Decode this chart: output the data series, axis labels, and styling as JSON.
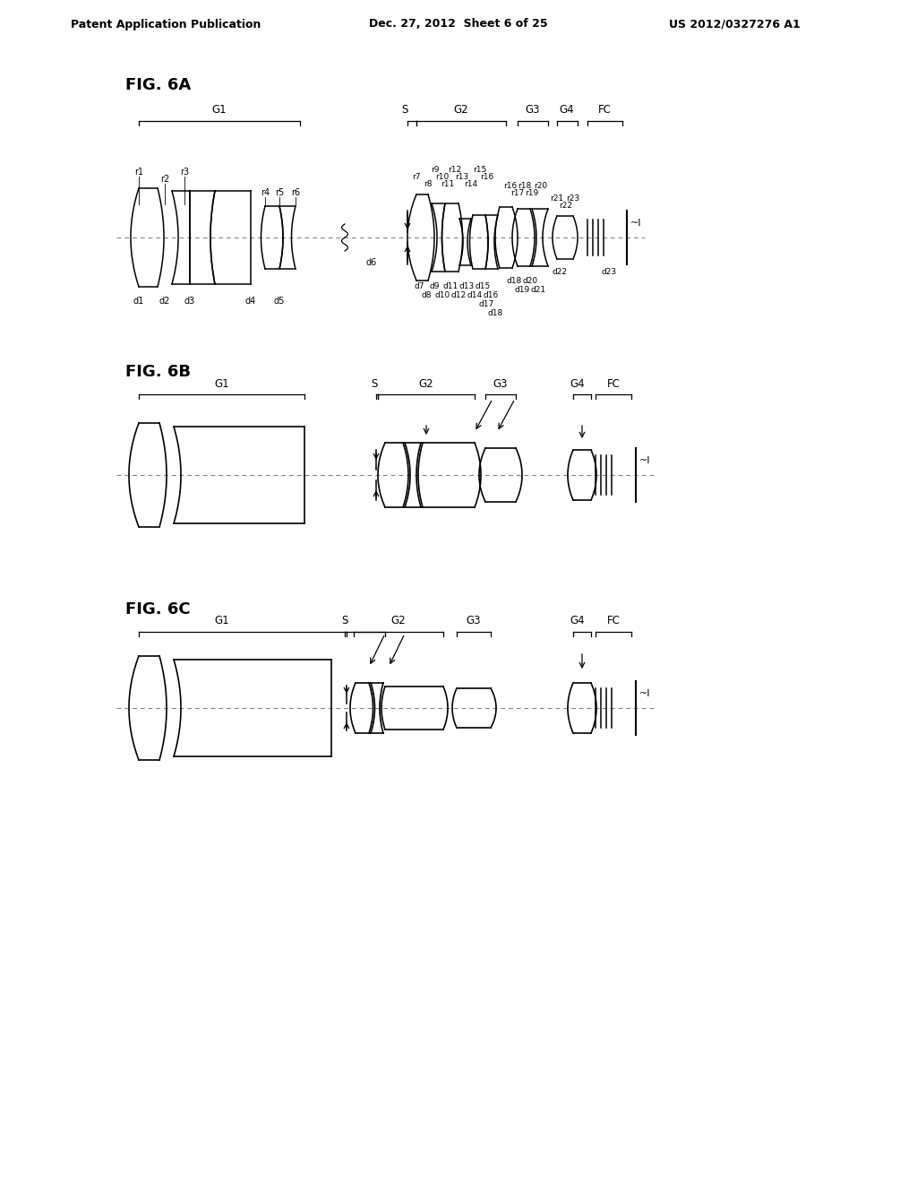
{
  "bg_color": "#ffffff",
  "header_left": "Patent Application Publication",
  "header_mid": "Dec. 27, 2012  Sheet 6 of 25",
  "header_right": "US 2012/0327276 A1",
  "fig6a_label": "FIG. 6A",
  "fig6b_label": "FIG. 6B",
  "fig6c_label": "FIG. 6C",
  "text_color": "#000000",
  "line_color": "#000000"
}
